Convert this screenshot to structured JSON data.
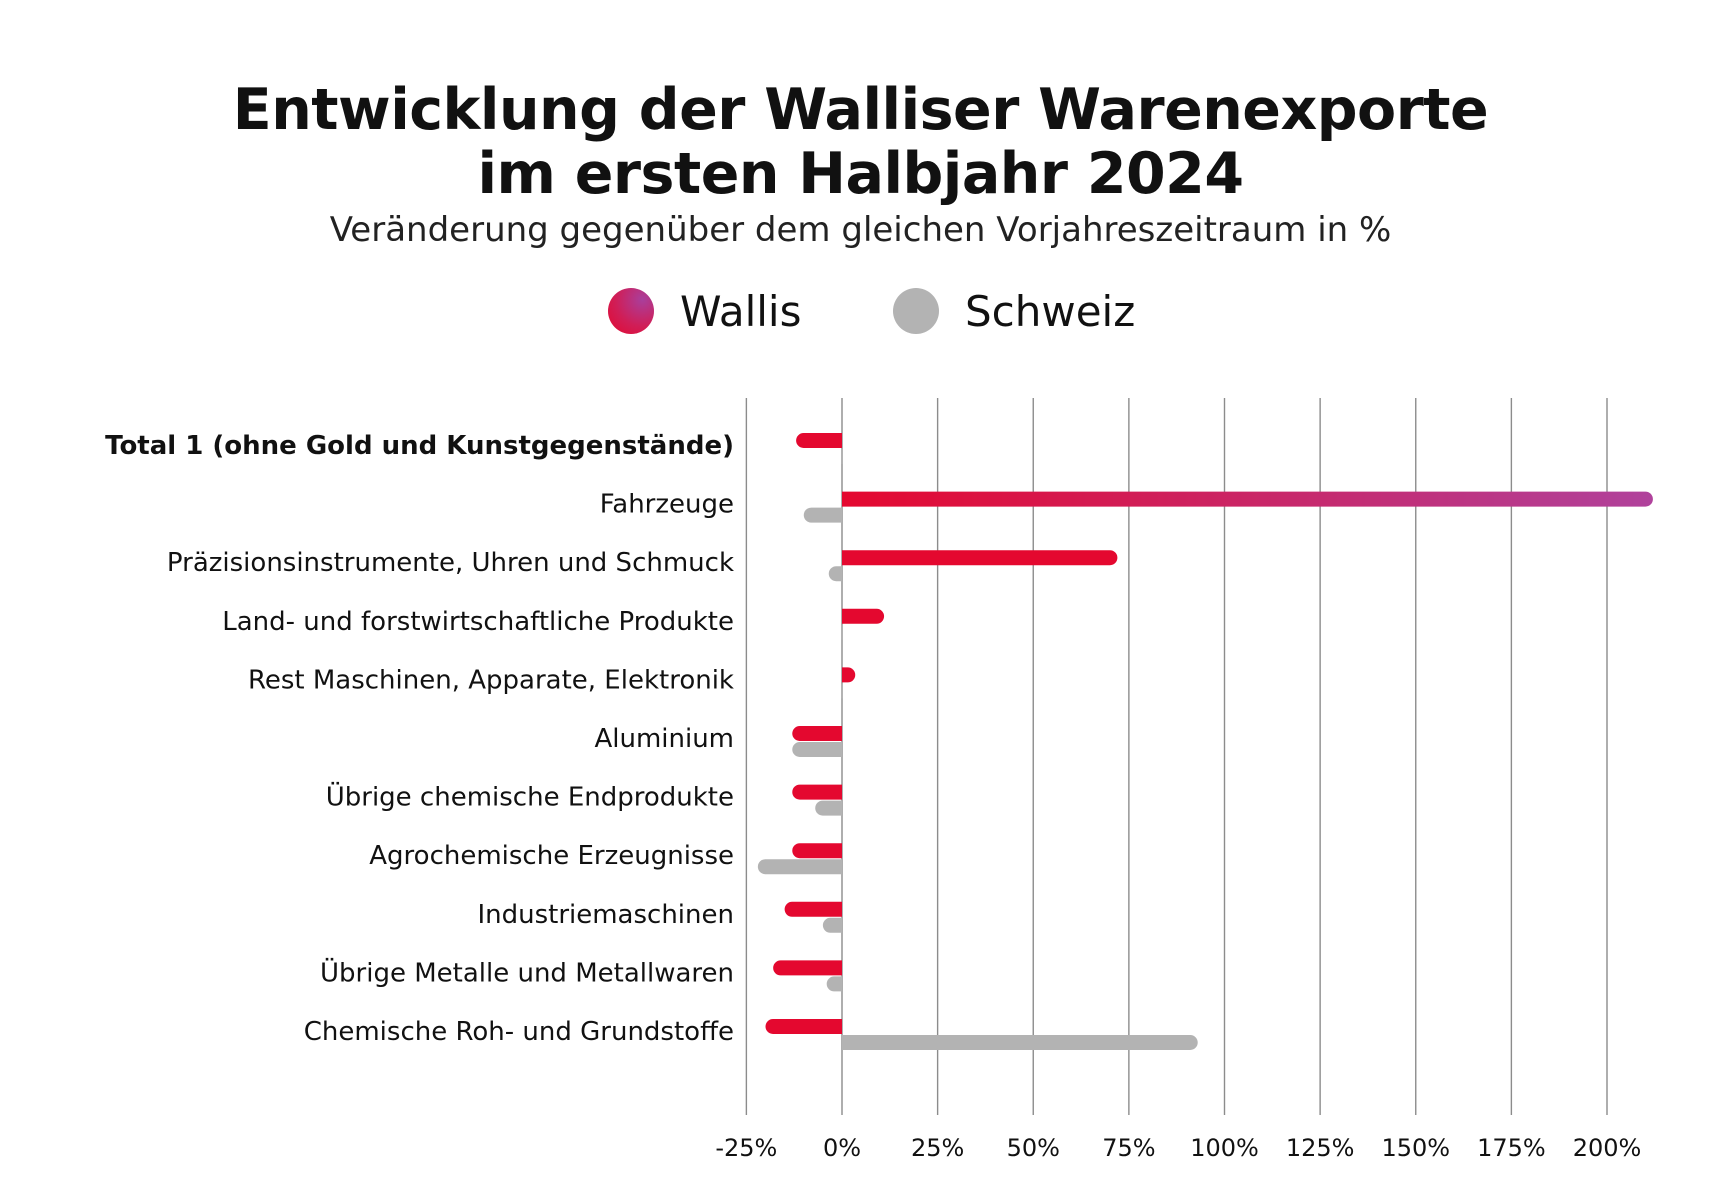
{
  "chart_data": {
    "type": "bar",
    "orientation": "horizontal",
    "title": "Entwicklung der Walliser Warenexporte im ersten Halbjahr 2024",
    "title_lines": [
      "Entwicklung der Walliser Warenexporte",
      "im ersten Halbjahr 2024"
    ],
    "subtitle": "Veränderung gegenüber dem gleichen Vorjahreszeitraum in %",
    "xlim": [
      -25,
      210
    ],
    "x_ticks": [
      -25,
      0,
      25,
      50,
      75,
      100,
      125,
      150,
      175,
      200
    ],
    "x_tick_labels": [
      "-25%",
      "0%",
      "25%",
      "50%",
      "75%",
      "100%",
      "125%",
      "150%",
      "175%",
      "200%"
    ],
    "grid": true,
    "legend_position": "top",
    "categories": [
      "Total 1 (ohne Gold und Kunstgegenstände)",
      "Fahrzeuge",
      "Präzisionsinstrumente, Uhren und Schmuck",
      "Land- und forstwirtschaftliche Produkte",
      "Rest Maschinen, Apparate, Elektronik",
      "Aluminium",
      "Übrige chemische Endprodukte",
      "Agrochemische Erzeugnisse",
      "Industriemaschinen",
      "Übrige Metalle und Metallwaren",
      "Chemische Roh- und Grundstoffe"
    ],
    "bold_categories": [
      0
    ],
    "series": [
      {
        "name": "Wallis",
        "color": "#e4082f",
        "color_end": "#b0429c",
        "values": [
          -12,
          212,
          72,
          11,
          3,
          -13,
          -13,
          -13,
          -15,
          -18,
          -20
        ]
      },
      {
        "name": "Schweiz",
        "color": "#b3b3b3",
        "values": [
          -0.3,
          -10,
          -3,
          -0.3,
          -0.3,
          -13,
          -7,
          -22,
          -5,
          -4,
          93
        ]
      }
    ]
  },
  "colors": {
    "wallis": "#e4082f",
    "wallis_gradient_end": "#b0429c",
    "schweiz": "#b3b3b3",
    "grid": "#8c8c8c"
  }
}
